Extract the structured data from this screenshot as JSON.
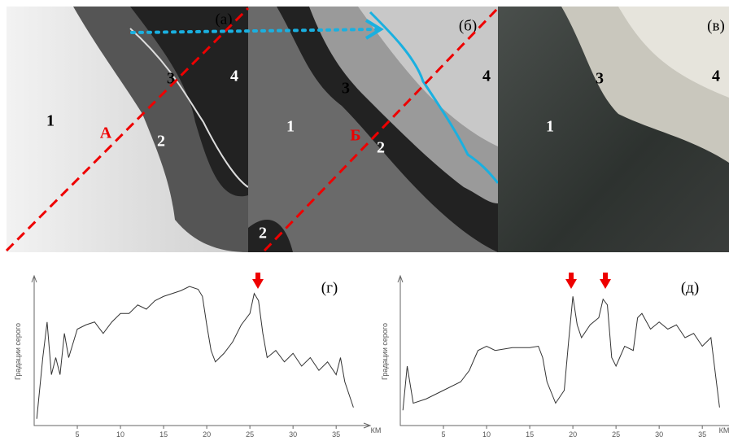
{
  "panels": [
    {
      "label": "(а)",
      "regions": [
        "1",
        "А",
        "2",
        "3",
        "4"
      ]
    },
    {
      "label": "(б)",
      "regions": [
        "1",
        "Б",
        "2",
        "3",
        "4",
        "2"
      ]
    },
    {
      "label": "(в)",
      "regions": [
        "1",
        "3",
        "4"
      ]
    }
  ],
  "chart_data": [
    {
      "type": "line",
      "annotation": "(г)",
      "y_label": "Градации серого",
      "x_label": "КМ",
      "color": "#333333",
      "xlim": [
        0,
        38
      ],
      "xticks": [
        5,
        10,
        15,
        20,
        25,
        30,
        35
      ],
      "ylim": [
        0,
        100
      ],
      "x": [
        0.3,
        1,
        1.5,
        2,
        2.5,
        3,
        3.5,
        4,
        5,
        6,
        7,
        8,
        9,
        10,
        11,
        12,
        13,
        14,
        15,
        16,
        17,
        18,
        19,
        19.5,
        20,
        20.5,
        21,
        22,
        23,
        24,
        25,
        25.5,
        26,
        26.5,
        27,
        28,
        29,
        30,
        31,
        32,
        33,
        34,
        35,
        35.5,
        36,
        37
      ],
      "values": [
        3,
        46,
        71,
        34,
        46,
        34,
        63,
        46,
        66,
        69,
        71,
        63,
        71,
        77,
        77,
        83,
        80,
        86,
        89,
        91,
        93,
        96,
        94,
        89,
        69,
        51,
        43,
        49,
        57,
        69,
        77,
        91,
        86,
        63,
        46,
        51,
        43,
        49,
        40,
        46,
        37,
        43,
        34,
        46,
        29,
        11
      ]
    },
    {
      "type": "line",
      "annotation": "(д)",
      "y_label": "Градации серого",
      "x_label": "КМ",
      "color": "#333333",
      "xlim": [
        0,
        38
      ],
      "xticks": [
        5,
        10,
        15,
        20,
        25,
        30,
        35
      ],
      "ylim": [
        0,
        100
      ],
      "x": [
        0.3,
        0.8,
        1.5,
        3,
        5,
        7,
        8,
        9,
        10,
        11,
        13,
        15,
        16,
        16.5,
        17,
        18,
        19,
        19.5,
        20,
        20.5,
        21,
        22,
        23,
        23.5,
        24,
        24.5,
        25,
        26,
        27,
        27.5,
        28,
        29,
        30,
        31,
        32,
        33,
        34,
        35,
        36,
        37
      ],
      "values": [
        9,
        40,
        14,
        17,
        23,
        29,
        37,
        51,
        54,
        51,
        53,
        53,
        54,
        46,
        29,
        14,
        23,
        57,
        89,
        69,
        60,
        69,
        74,
        87,
        83,
        46,
        40,
        54,
        51,
        74,
        77,
        66,
        71,
        66,
        69,
        60,
        63,
        54,
        60,
        11
      ]
    }
  ]
}
